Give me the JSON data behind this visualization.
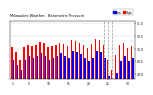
{
  "title": "Milwaukee Weather - Barometric Pressure",
  "legend_high": "High",
  "legend_low": "Low",
  "high_color": "#ff0000",
  "low_color": "#0000ff",
  "background_color": "#ffffff",
  "ylim": [
    28.8,
    31.1
  ],
  "ytick_vals": [
    29.0,
    29.5,
    30.0,
    30.5,
    31.0
  ],
  "categories": [
    "1",
    "2",
    "3",
    "4",
    "5",
    "6",
    "7",
    "8",
    "9",
    "10",
    "11",
    "12",
    "13",
    "14",
    "15",
    "16",
    "17",
    "18",
    "19",
    "20",
    "21",
    "22",
    "23",
    "24",
    "25",
    "26",
    "27",
    "28",
    "29",
    "30",
    "31"
  ],
  "highs": [
    30.05,
    29.85,
    29.55,
    30.05,
    30.15,
    30.1,
    30.12,
    30.25,
    30.2,
    30.05,
    30.1,
    30.15,
    30.22,
    30.18,
    30.08,
    30.35,
    30.28,
    30.22,
    30.12,
    30.02,
    30.18,
    30.38,
    30.32,
    30.12,
    29.55,
    29.15,
    29.75,
    30.12,
    30.22,
    30.02,
    30.08
  ],
  "lows": [
    29.55,
    29.35,
    29.15,
    29.55,
    29.72,
    29.62,
    29.72,
    29.82,
    29.72,
    29.55,
    29.62,
    29.72,
    29.82,
    29.72,
    29.62,
    29.92,
    29.88,
    29.78,
    29.62,
    29.52,
    29.62,
    29.92,
    29.88,
    29.62,
    28.92,
    28.72,
    29.02,
    29.52,
    29.72,
    29.52,
    29.62
  ],
  "dotted_lines": [
    23,
    24,
    25
  ],
  "tick_positions": [
    0,
    4,
    9,
    14,
    19,
    24,
    29
  ],
  "tick_labels": [
    "1",
    "5",
    "10",
    "15",
    "20",
    "25",
    "30"
  ]
}
